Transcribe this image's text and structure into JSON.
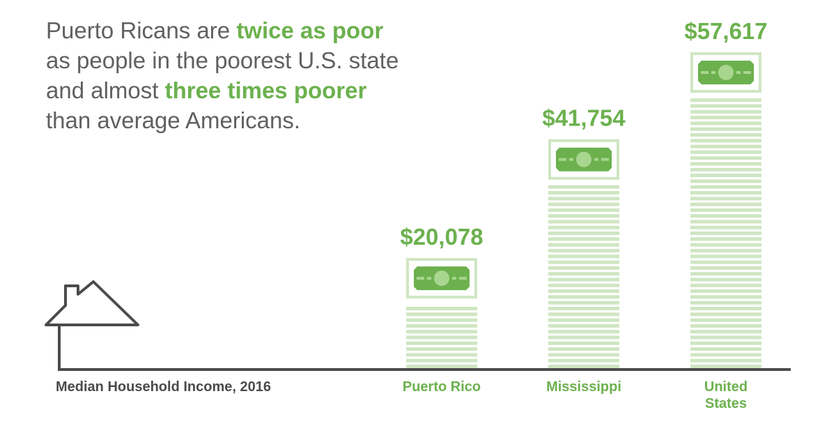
{
  "headline": {
    "p1": "Puerto Ricans are ",
    "hl1": "twice as poor",
    "p2": "as people in the poorest U.S. state",
    "p3": "and almost ",
    "hl2": "three times poorer",
    "p4": "than average Americans."
  },
  "colors": {
    "accent": "#6cb14e",
    "stack": "#cfe6c2",
    "bill": "#6cb14e",
    "bill_light": "#a9d68f",
    "text": "#5f6062",
    "axis": "#4a4b4d"
  },
  "icons": {
    "axis_icon": "house-outline-icon",
    "bill_icon": "dollar-bill-icon"
  },
  "chart_data": {
    "type": "bar",
    "title": "",
    "xlabel": "Median Household Income, 2016",
    "ylabel": "",
    "categories": [
      "Puerto Rico",
      "Mississippi",
      "United States"
    ],
    "category_lines": [
      [
        "Puerto Rico"
      ],
      [
        "Mississippi"
      ],
      [
        "United",
        "States"
      ]
    ],
    "values": [
      20078,
      41754,
      57617
    ],
    "value_labels": [
      "$20,078",
      "$41,754",
      "$57,617"
    ],
    "ylim": [
      0,
      57617
    ],
    "grid": false,
    "legend": "none"
  }
}
